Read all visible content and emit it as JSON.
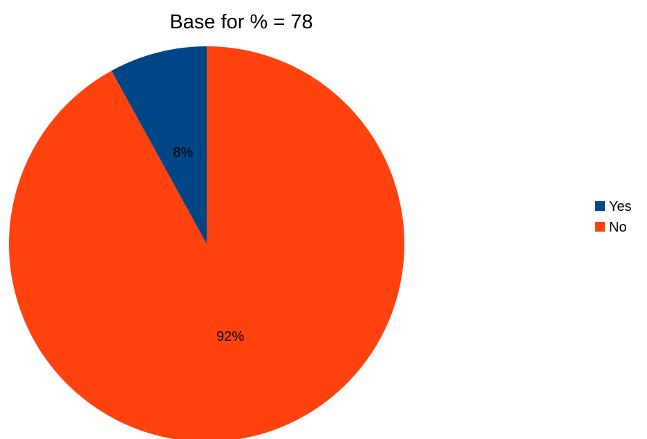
{
  "chart_data": {
    "type": "pie",
    "title": "Base for % = 78",
    "categories": [
      "Yes",
      "No"
    ],
    "values": [
      8,
      92
    ],
    "value_labels": [
      "8%",
      "92%"
    ],
    "colors": [
      "#004586",
      "#ff420e"
    ],
    "legend_placement": "right"
  }
}
